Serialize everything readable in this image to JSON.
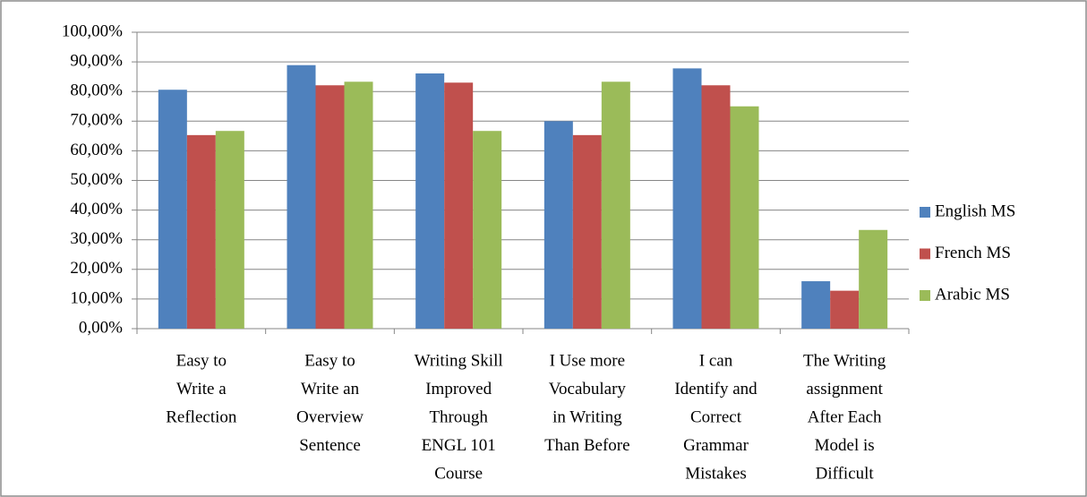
{
  "chart_data": {
    "type": "bar",
    "categories": [
      [
        "Easy to",
        "Write a",
        "Reflection"
      ],
      [
        "Easy to",
        "Write an",
        "Overview",
        "Sentence"
      ],
      [
        "Writing Skill",
        "Improved",
        "Through",
        "ENGL 101",
        "Course"
      ],
      [
        "I Use more",
        "Vocabulary",
        "in Writing",
        "Than Before"
      ],
      [
        "I can",
        "Identify and",
        "Correct",
        "Grammar",
        "Mistakes"
      ],
      [
        "The Writing",
        "assignment",
        "After Each",
        "Model is",
        "Difficult"
      ]
    ],
    "series": [
      {
        "name": "English MS",
        "color": "#4f81bd",
        "values": [
          80.6,
          88.9,
          86.1,
          70,
          87.8,
          16
        ]
      },
      {
        "name": "French MS",
        "color": "#c0504d",
        "values": [
          65.3,
          82.1,
          83,
          65.3,
          82.1,
          12.8
        ]
      },
      {
        "name": "Arabic MS",
        "color": "#9bbb59",
        "values": [
          66.7,
          83.3,
          66.7,
          83.3,
          75,
          33.3
        ]
      }
    ],
    "ylim": [
      0,
      100
    ],
    "yticks": [
      {
        "value": 0,
        "label": "0,00%"
      },
      {
        "value": 10,
        "label": "10,00%"
      },
      {
        "value": 20,
        "label": "20,00%"
      },
      {
        "value": 30,
        "label": "30,00%"
      },
      {
        "value": 40,
        "label": "40,00%"
      },
      {
        "value": 50,
        "label": "50,00%"
      },
      {
        "value": 60,
        "label": "60,00%"
      },
      {
        "value": 70,
        "label": "70,00%"
      },
      {
        "value": 80,
        "label": "80,00%"
      },
      {
        "value": 90,
        "label": "90,00%"
      },
      {
        "value": 100,
        "label": "100,00%"
      }
    ],
    "grid": true,
    "legend": "right"
  }
}
